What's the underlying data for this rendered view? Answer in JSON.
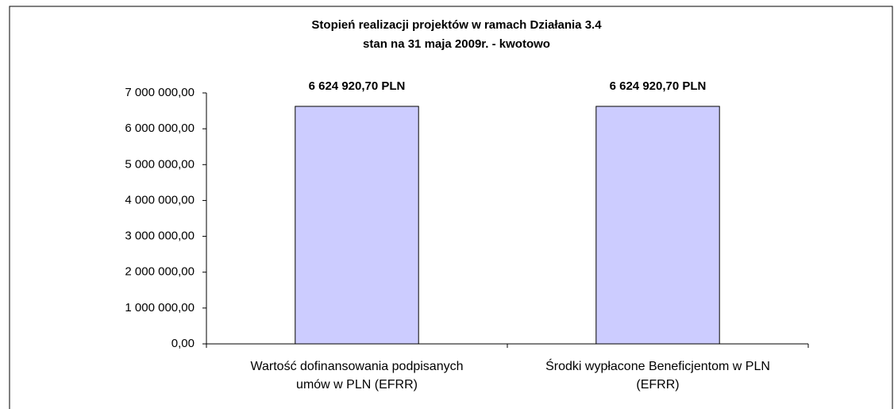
{
  "chart_data": {
    "type": "bar",
    "title": "Stopień realizacji projektów w ramach Działania 3.4",
    "subtitle": "stan na 31 maja 2009r. - kwotowo",
    "categories": [
      "Wartość dofinansowania podpisanych umów w PLN (EFRR)",
      "Środki wypłacone Beneficjentom w PLN (EFRR)"
    ],
    "values": [
      6624920.7,
      6624920.7
    ],
    "value_labels": [
      "6 624 920,70 PLN",
      "6 624 920,70 PLN"
    ],
    "color": "#ccccff",
    "ylim": [
      0,
      7000000
    ],
    "yticks": [
      {
        "value": 0,
        "label": "0,00"
      },
      {
        "value": 1000000,
        "label": "1 000 000,00"
      },
      {
        "value": 2000000,
        "label": "2 000 000,00"
      },
      {
        "value": 3000000,
        "label": "3 000 000,00"
      },
      {
        "value": 4000000,
        "label": "4 000 000,00"
      },
      {
        "value": 5000000,
        "label": "5 000 000,00"
      },
      {
        "value": 6000000,
        "label": "6 000 000,00"
      },
      {
        "value": 7000000,
        "label": "7 000 000,00"
      }
    ],
    "grid": false
  }
}
